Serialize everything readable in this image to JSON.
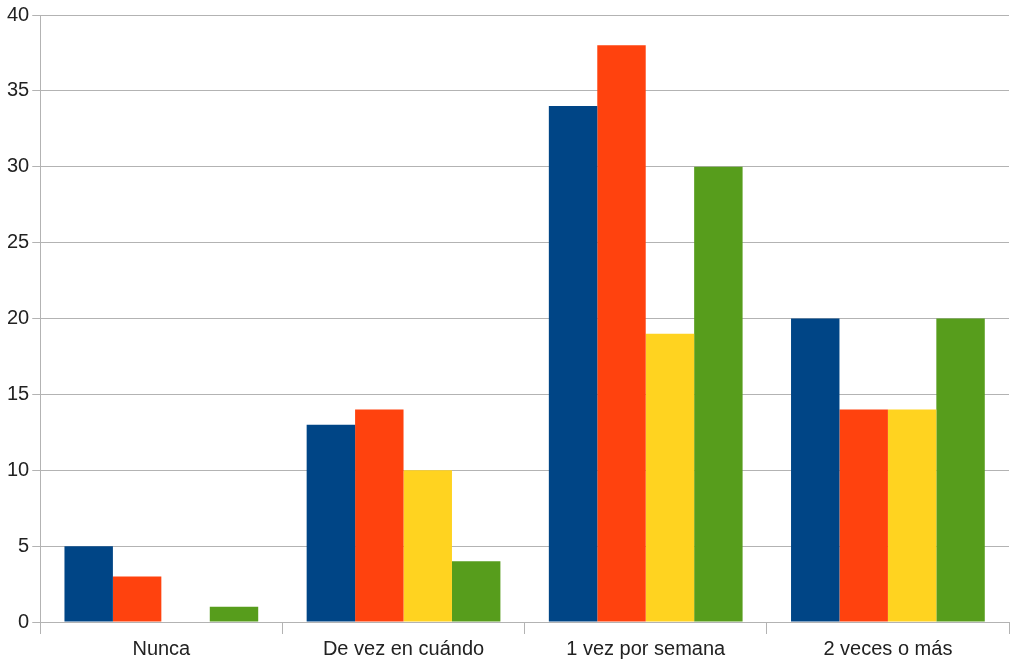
{
  "chart_data": {
    "type": "bar",
    "categories": [
      "Nunca",
      "De vez en cuándo",
      "1 vez por semana",
      "2 veces o más"
    ],
    "series": [
      {
        "color": "#004586",
        "values": [
          5,
          13,
          34,
          20
        ]
      },
      {
        "color": "#ff420e",
        "values": [
          3,
          14,
          38,
          14
        ]
      },
      {
        "color": "#ffd320",
        "values": [
          0,
          10,
          19,
          14
        ]
      },
      {
        "color": "#579d1c",
        "values": [
          1,
          4,
          30,
          20
        ]
      }
    ],
    "ylim": [
      0,
      40
    ],
    "yticks": [
      0,
      5,
      10,
      15,
      20,
      25,
      30,
      35,
      40
    ],
    "grid": "y",
    "legend": false
  }
}
